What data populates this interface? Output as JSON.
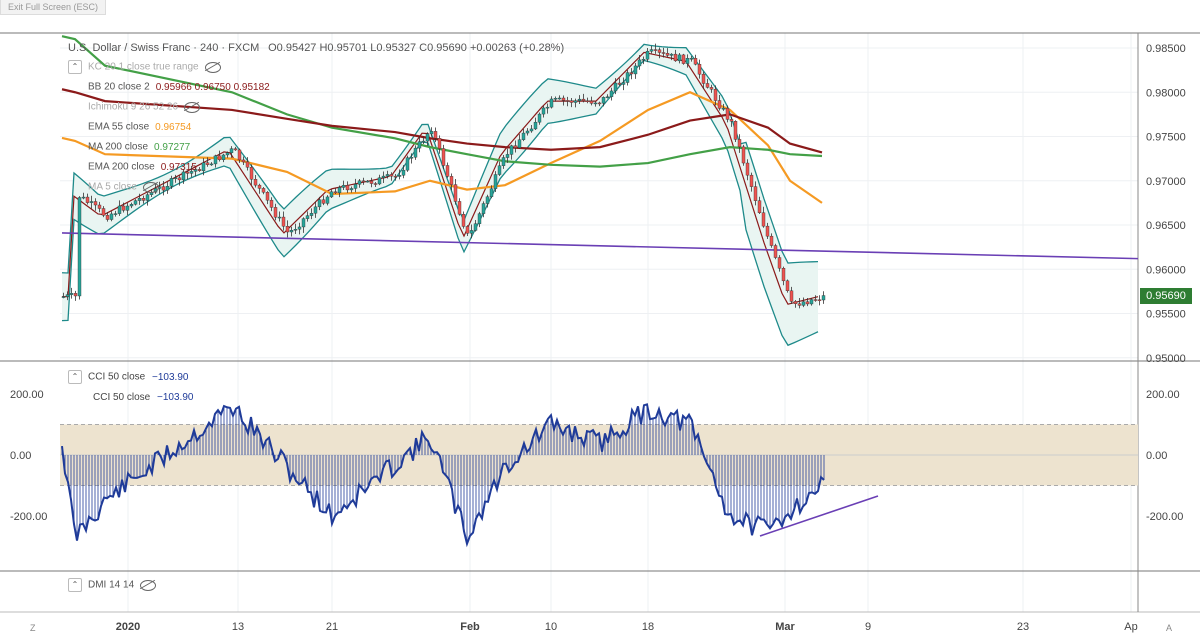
{
  "window": {
    "exit_fullscreen": "Exit Full Screen (ESC)"
  },
  "header": {
    "symbol": "U.S. Dollar / Swiss Franc · 240 · FXCM",
    "ohlc": "O0.95427 H0.95701 L0.95327 C0.95690 +0.00263 (+0.28%)"
  },
  "indicators": [
    {
      "label": "KC 20 1 close true range",
      "value": "",
      "color": "#aaaaaa"
    },
    {
      "label": "BB 20 close 2",
      "value": "0.95966  0.96750  0.95182",
      "color": "#8b1a1a"
    },
    {
      "label": "Ichimoku 9 26 52 26",
      "value": "",
      "color": "#aaaaaa"
    },
    {
      "label": "EMA 55 close",
      "value": "0.96754",
      "color": "#f59a23"
    },
    {
      "label": "MA 200 close",
      "value": "0.97277",
      "color": "#43a047"
    },
    {
      "label": "EMA 200 close",
      "value": "0.97315",
      "color": "#8b1a1a"
    },
    {
      "label": "MA 5 close",
      "value": "",
      "color": "#aaaaaa"
    }
  ],
  "price_axis": [
    "0.98500",
    "0.98000",
    "0.97500",
    "0.97000",
    "0.96500",
    "0.96000",
    "0.95500",
    "0.95000"
  ],
  "last_price": "0.95690",
  "cci_legend": [
    {
      "label": "CCI 50 close",
      "value": "−103.90"
    },
    {
      "label": "CCI 50 close",
      "value": "−103.90"
    }
  ],
  "cci_axis": [
    "200.00",
    "0.00",
    "-200.00"
  ],
  "dmi_legend": "DMI 14 14",
  "date_axis": [
    "2020",
    "13",
    "21",
    "Feb",
    "10",
    "18",
    "Mar",
    "9",
    "23",
    "Ap"
  ],
  "corner_left": "Z",
  "corner_right": "A",
  "colors": {
    "up": "#26a69a",
    "down": "#ef5350",
    "bb": "#8b1a1a",
    "kc": "#1e8a8a",
    "ema55": "#f59a23",
    "ma200": "#43a047",
    "ema200": "#8b1a1a",
    "trend": "#6a3fb5",
    "cci": "#1f3b99",
    "band": "#ede3cf",
    "price_tag": "#2e7d32"
  },
  "chart_data": {
    "type": "line",
    "title": "U.S. Dollar / Swiss Franc · 240 · FXCM",
    "x": [
      "Jan 6",
      "Jan 9",
      "Jan 13",
      "Jan 16",
      "Jan 21",
      "Jan 24",
      "Jan 28",
      "Feb 3",
      "Feb 6",
      "Feb 10",
      "Feb 13",
      "Feb 18",
      "Feb 21",
      "Feb 25",
      "Feb 28",
      "Mar 3",
      "Mar 5"
    ],
    "ylim": [
      0.95,
      0.987
    ],
    "series": [
      {
        "name": "Close",
        "values": [
          0.9685,
          0.966,
          0.9735,
          0.964,
          0.969,
          0.9705,
          0.976,
          0.9635,
          0.973,
          0.979,
          0.979,
          0.9845,
          0.9835,
          0.9765,
          0.963,
          0.956,
          0.9569
        ]
      },
      {
        "name": "EMA 55 close",
        "values": [
          0.9745,
          0.973,
          0.9725,
          0.971,
          0.9685,
          0.9688,
          0.97,
          0.969,
          0.9695,
          0.972,
          0.9745,
          0.978,
          0.98,
          0.978,
          0.974,
          0.97,
          0.9675
        ]
      },
      {
        "name": "MA 200 close",
        "values": [
          0.986,
          0.983,
          0.98,
          0.9775,
          0.976,
          0.9748,
          0.9738,
          0.973,
          0.9722,
          0.9718,
          0.9716,
          0.972,
          0.973,
          0.9738,
          0.9735,
          0.973,
          0.9728
        ]
      },
      {
        "name": "EMA 200 close",
        "values": [
          0.98,
          0.979,
          0.978,
          0.977,
          0.9762,
          0.9755,
          0.9748,
          0.9742,
          0.9738,
          0.9735,
          0.9738,
          0.9752,
          0.9768,
          0.9775,
          0.976,
          0.9742,
          0.9732
        ]
      }
    ],
    "trendline": {
      "from": [
        "Jan 2",
        0.9641
      ],
      "to": [
        "Apr 2",
        0.9612
      ]
    },
    "cci": {
      "x": [
        "Jan 6",
        "Jan 9",
        "Jan 13",
        "Jan 16",
        "Jan 21",
        "Jan 24",
        "Jan 28",
        "Feb 3",
        "Feb 6",
        "Feb 10",
        "Feb 13",
        "Feb 18",
        "Feb 21",
        "Feb 25",
        "Feb 28",
        "Mar 3",
        "Mar 5"
      ],
      "values": [
        -270,
        -150,
        160,
        -40,
        -200,
        -30,
        60,
        -270,
        -40,
        100,
        40,
        150,
        100,
        -200,
        -250,
        -180,
        -104
      ],
      "band": [
        -100,
        100
      ],
      "ylim": [
        -380,
        300
      ]
    }
  }
}
